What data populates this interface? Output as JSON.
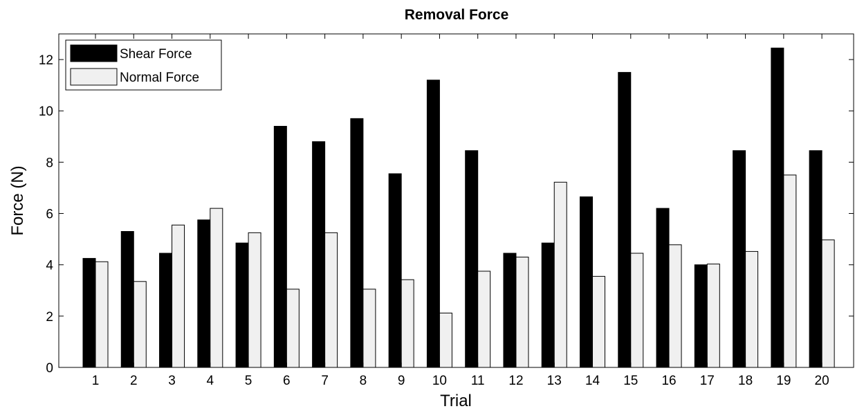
{
  "chart_data": {
    "type": "bar",
    "title": "Removal Force",
    "xlabel": "Trial",
    "ylabel": "Force (N)",
    "categories": [
      "1",
      "2",
      "3",
      "4",
      "5",
      "6",
      "7",
      "8",
      "9",
      "10",
      "11",
      "12",
      "13",
      "14",
      "15",
      "16",
      "17",
      "18",
      "19",
      "20"
    ],
    "ylim": [
      0,
      13
    ],
    "yticks": [
      0,
      2,
      4,
      6,
      8,
      10,
      12
    ],
    "series": [
      {
        "name": "Shear Force",
        "color": "#000000",
        "values": [
          4.25,
          5.3,
          4.45,
          5.75,
          4.85,
          9.4,
          8.8,
          9.7,
          7.55,
          11.2,
          8.45,
          4.45,
          4.85,
          6.65,
          11.5,
          6.2,
          4.0,
          8.45,
          12.45,
          8.45
        ]
      },
      {
        "name": "Normal Force",
        "color": "#f0f0f0",
        "values": [
          4.12,
          3.35,
          5.55,
          6.2,
          5.25,
          3.05,
          5.25,
          3.05,
          3.42,
          2.12,
          3.75,
          4.3,
          7.22,
          3.55,
          4.45,
          4.78,
          4.03,
          4.52,
          7.5,
          4.97
        ]
      }
    ],
    "legend_position": "top-left",
    "grid": false
  }
}
